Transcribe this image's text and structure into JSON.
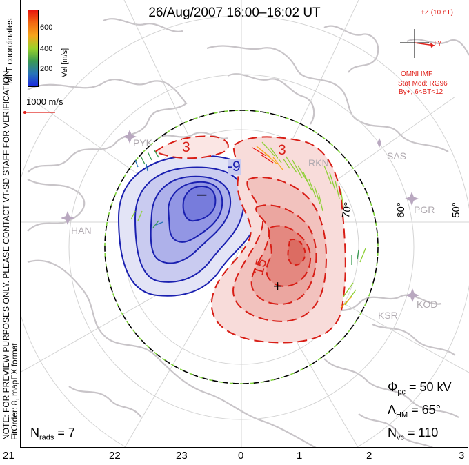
{
  "title": "26/Aug/2007 16:00–16:02 UT",
  "color_bar": {
    "label": "Vel [m/s]",
    "ticks": [
      "600",
      "400",
      "200"
    ],
    "colors": [
      "#e8160e",
      "#f26a12",
      "#f6a61c",
      "#9bd22a",
      "#3a9a52",
      "#2874b8",
      "#1a2ae0"
    ]
  },
  "coordinates_label": "MLT coordinates",
  "vector_scale_label": "1000 m/s",
  "note_line1": "NOTE: FOR PREVIEW PURPOSES ONLY. PLEASE CONTACT VT-SD STAFF FOR VERIFICATION.",
  "note_line2": "FitOrder: 8,  mapEX format",
  "imf": {
    "z_label": "+Z (10 nT)",
    "y_label": "+Y",
    "omni_label": "OMNI IMF",
    "model_label": "Stat Mod: RG96",
    "model_params": "By+, 6<BT<12"
  },
  "stats": {
    "phi_symbol": "Φ",
    "phi_sub": "pc",
    "phi_value": "= 50 kV",
    "lambda_symbol": "Λ",
    "lambda_sub": "HM",
    "lambda_value": "= 65°",
    "nvc_symbol": "N",
    "nvc_sub": "vc",
    "nvc_value": "= 110",
    "nrads_symbol": "N",
    "nrads_sub": "rads",
    "nrads_value": "= 7"
  },
  "mlt_labels": [
    "21",
    "22",
    "23",
    "0",
    "1",
    "2",
    "3"
  ],
  "lat_labels": [
    "70°",
    "60°",
    "50°"
  ],
  "stations": [
    "SAS",
    "PGR",
    "KOD",
    "KSR",
    "HAN",
    "RKN",
    "PYK"
  ],
  "contour_labels": {
    "negative_outer": "-3",
    "negative_inner": "-9",
    "positive_outer": "3",
    "positive_inner": "15",
    "min_marker": "–",
    "max_marker": "+"
  },
  "colors": {
    "negative_fill": "#3c40d8",
    "negative_line": "#1a20b0",
    "positive_fill": "#e84a3c",
    "positive_line": "#d81e16",
    "coast": "#c8c4c8",
    "grid": "#d4d4d4",
    "boundary_green": "#7ed23a"
  }
}
